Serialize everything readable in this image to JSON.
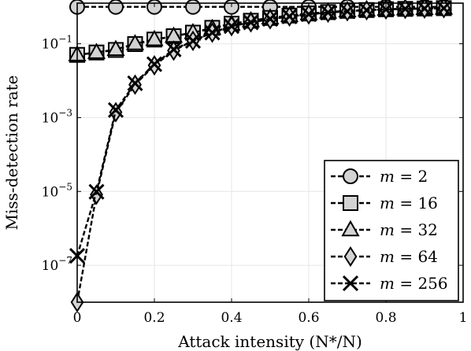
{
  "chart_data": {
    "type": "line",
    "xlabel": "Attack intensity (N*/N)",
    "ylabel": "Miss-detection rate",
    "xlim": [
      0,
      1
    ],
    "ylim_log10": [
      -8,
      0.1
    ],
    "y_scale": "log",
    "grid": true,
    "legend_position": "bottom-right",
    "x_ticks": [
      "0",
      "0.2",
      "0.4",
      "0.6",
      "0.8",
      "1"
    ],
    "y_ticks": [
      {
        "base": "10",
        "exp": "−1",
        "value": 0.1
      },
      {
        "base": "10",
        "exp": "−3",
        "value": 0.001
      },
      {
        "base": "10",
        "exp": "−5",
        "value": 1e-05
      },
      {
        "base": "10",
        "exp": "−7",
        "value": 1e-07
      }
    ],
    "series": [
      {
        "name": "m = 2",
        "marker": "circle",
        "x": [
          0,
          0.1,
          0.2,
          0.3,
          0.4,
          0.5,
          0.6,
          0.7,
          0.8,
          0.9,
          0.95
        ],
        "y": [
          1,
          1,
          1,
          1,
          1,
          1,
          1,
          1,
          1,
          1,
          1
        ]
      },
      {
        "name": "m = 16",
        "marker": "square",
        "x": [
          0,
          0.05,
          0.1,
          0.15,
          0.2,
          0.25,
          0.3,
          0.35,
          0.4,
          0.45,
          0.5,
          0.55,
          0.6,
          0.65,
          0.7,
          0.75,
          0.8,
          0.85,
          0.9,
          0.95
        ],
        "y": [
          0.05,
          0.058,
          0.068,
          0.098,
          0.13,
          0.16,
          0.2,
          0.27,
          0.35,
          0.42,
          0.5,
          0.58,
          0.66,
          0.72,
          0.78,
          0.82,
          0.86,
          0.88,
          0.9,
          0.92
        ]
      },
      {
        "name": "m = 32",
        "marker": "triangle",
        "x": [
          0,
          0.05,
          0.1,
          0.15,
          0.2,
          0.25,
          0.3,
          0.35,
          0.4,
          0.45,
          0.5,
          0.55,
          0.6,
          0.65,
          0.7,
          0.75,
          0.8,
          0.85,
          0.9,
          0.95
        ],
        "y": [
          0.05,
          0.058,
          0.07,
          0.1,
          0.13,
          0.16,
          0.2,
          0.26,
          0.34,
          0.42,
          0.5,
          0.58,
          0.65,
          0.72,
          0.78,
          0.82,
          0.86,
          0.88,
          0.9,
          0.92
        ]
      },
      {
        "name": "m = 64",
        "marker": "diamond",
        "x": [
          0,
          0.05,
          0.1,
          0.15,
          0.2,
          0.25,
          0.3,
          0.35,
          0.4,
          0.45,
          0.5,
          0.55,
          0.6,
          0.65,
          0.7,
          0.75,
          0.8,
          0.85,
          0.9,
          0.95
        ],
        "y": [
          1e-08,
          8.2e-06,
          0.0014,
          0.0078,
          0.026,
          0.065,
          0.12,
          0.2,
          0.3,
          0.38,
          0.46,
          0.55,
          0.62,
          0.7,
          0.76,
          0.81,
          0.85,
          0.88,
          0.9,
          0.92
        ]
      },
      {
        "name": "m = 256",
        "marker": "cross",
        "x": [
          0,
          0.05,
          0.1,
          0.15,
          0.2,
          0.25,
          0.3,
          0.35,
          0.4,
          0.45,
          0.5,
          0.55,
          0.6,
          0.65,
          0.7,
          0.75,
          0.8,
          0.85,
          0.9,
          0.95
        ],
        "y": [
          1.8e-07,
          9.8e-06,
          0.0016,
          0.0085,
          0.028,
          0.07,
          0.12,
          0.2,
          0.3,
          0.38,
          0.47,
          0.55,
          0.63,
          0.7,
          0.76,
          0.81,
          0.85,
          0.88,
          0.9,
          0.92
        ]
      }
    ],
    "legend": [
      {
        "name_var": "m",
        "value": "2",
        "marker": "circle"
      },
      {
        "name_var": "m",
        "value": "16",
        "marker": "square"
      },
      {
        "name_var": "m",
        "value": "32",
        "marker": "triangle"
      },
      {
        "name_var": "m",
        "value": "64",
        "marker": "diamond"
      },
      {
        "name_var": "m",
        "value": "256",
        "marker": "cross"
      }
    ],
    "colors": {
      "marker_fill": "#d3d3d3",
      "stroke": "#000000",
      "grid": "#e6e6e6"
    }
  }
}
